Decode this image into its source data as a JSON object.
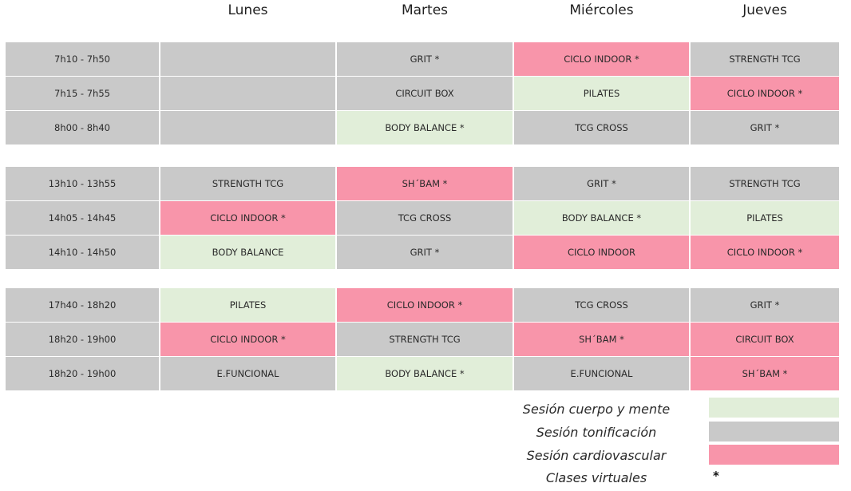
{
  "days": [
    "Lunes",
    "Martes",
    "Miércoles",
    "Jueves"
  ],
  "colors": {
    "cardio": "#f895aa",
    "tonificacion": "#c9c9c9",
    "cuerpo_mente": "#e1eed9"
  },
  "schedule": {
    "blocks": [
      {
        "rows": [
          {
            "time": "7h10 - 7h50",
            "cells": [
              {
                "label": "",
                "type": "empty"
              },
              {
                "label": "GRIT *",
                "type": "tono"
              },
              {
                "label": "CICLO INDOOR *",
                "type": "cardio"
              },
              {
                "label": "STRENGTH TCG",
                "type": "tono"
              }
            ]
          },
          {
            "time": "7h15 - 7h55",
            "cells": [
              {
                "label": "",
                "type": "empty"
              },
              {
                "label": "CIRCUIT BOX",
                "type": "tono"
              },
              {
                "label": "PILATES",
                "type": "mente"
              },
              {
                "label": "CICLO INDOOR *",
                "type": "cardio"
              }
            ]
          },
          {
            "time": "8h00 - 8h40",
            "cells": [
              {
                "label": "",
                "type": "empty"
              },
              {
                "label": "BODY BALANCE *",
                "type": "mente"
              },
              {
                "label": "TCG CROSS",
                "type": "tono"
              },
              {
                "label": "GRIT *",
                "type": "tono"
              }
            ]
          }
        ]
      },
      {
        "rows": [
          {
            "time": "13h10 - 13h55",
            "cells": [
              {
                "label": "STRENGTH TCG",
                "type": "tono"
              },
              {
                "label": "SH´BAM *",
                "type": "cardio"
              },
              {
                "label": "GRIT *",
                "type": "tono"
              },
              {
                "label": "STRENGTH TCG",
                "type": "tono"
              }
            ]
          },
          {
            "time": "14h05 - 14h45",
            "cells": [
              {
                "label": "CICLO INDOOR *",
                "type": "cardio"
              },
              {
                "label": "TCG CROSS",
                "type": "tono"
              },
              {
                "label": "BODY BALANCE *",
                "type": "mente"
              },
              {
                "label": "PILATES",
                "type": "mente"
              }
            ]
          },
          {
            "time": "14h10 - 14h50",
            "cells": [
              {
                "label": "BODY BALANCE",
                "type": "mente"
              },
              {
                "label": "GRIT *",
                "type": "tono"
              },
              {
                "label": "CICLO INDOOR",
                "type": "cardio"
              },
              {
                "label": "CICLO INDOOR *",
                "type": "cardio"
              }
            ]
          }
        ]
      },
      {
        "rows": [
          {
            "time": "17h40 - 18h20",
            "cells": [
              {
                "label": "PILATES",
                "type": "mente"
              },
              {
                "label": "CICLO INDOOR *",
                "type": "cardio"
              },
              {
                "label": "TCG CROSS",
                "type": "tono"
              },
              {
                "label": "GRIT *",
                "type": "tono"
              }
            ]
          },
          {
            "time": "18h20 - 19h00",
            "cells": [
              {
                "label": "CICLO INDOOR *",
                "type": "cardio"
              },
              {
                "label": "STRENGTH TCG",
                "type": "tono"
              },
              {
                "label": "SH´BAM *",
                "type": "cardio"
              },
              {
                "label": "CIRCUIT BOX",
                "type": "cardio"
              }
            ]
          },
          {
            "time": "18h20 - 19h00",
            "cells": [
              {
                "label": "E.FUNCIONAL",
                "type": "tono"
              },
              {
                "label": "BODY BALANCE *",
                "type": "mente"
              },
              {
                "label": "E.FUNCIONAL",
                "type": "tono"
              },
              {
                "label": "SH´BAM *",
                "type": "cardio"
              }
            ]
          }
        ]
      }
    ]
  },
  "legend": {
    "cuerpo_mente": "Sesión cuerpo y mente",
    "tonificacion": "Sesión tonificación",
    "cardiovascular": "Sesión cardiovascular",
    "virtuales": "Clases virtuales",
    "virtual_symbol": "*"
  }
}
